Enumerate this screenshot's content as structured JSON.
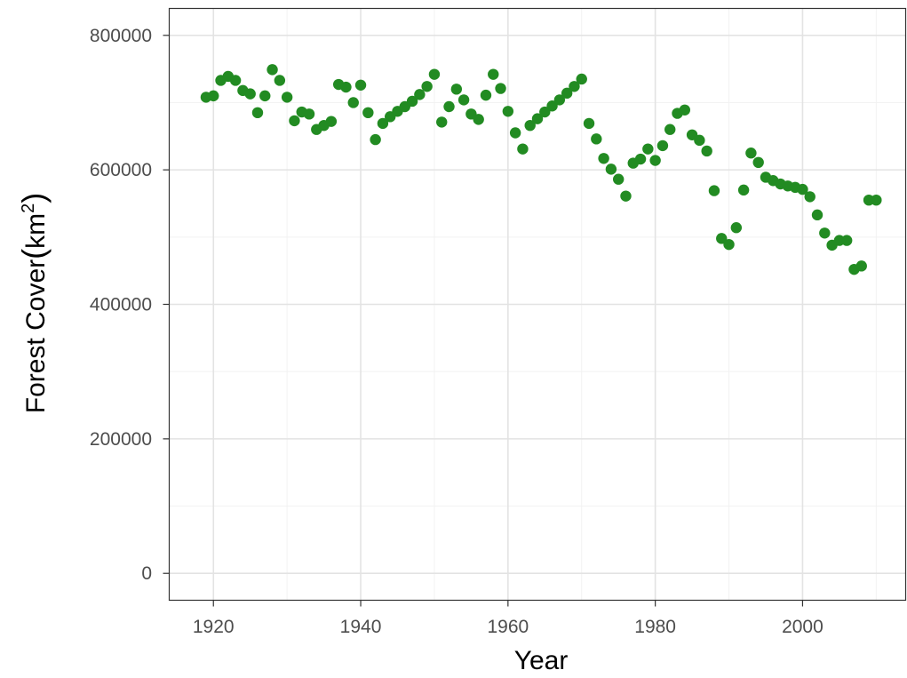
{
  "chart_data": {
    "type": "scatter",
    "xlabel": "Year",
    "ylabel": "Forest Cover",
    "ylabel_unit_base": "km",
    "ylabel_unit_exp": "2",
    "xlim": [
      1914,
      2014
    ],
    "ylim": [
      -40000,
      840000
    ],
    "x_ticks": [
      1920,
      1940,
      1960,
      1980,
      2000
    ],
    "y_ticks": [
      0,
      200000,
      400000,
      600000,
      800000
    ],
    "x_tick_labels": [
      "1920",
      "1940",
      "1960",
      "1980",
      "2000"
    ],
    "y_tick_labels": [
      "0",
      "200000",
      "400000",
      "600000",
      "800000"
    ],
    "grid": true,
    "point_color": "#228B22",
    "series": [
      {
        "x": [
          1919,
          1920,
          1921,
          1922,
          1923,
          1924,
          1925,
          1926,
          1927,
          1928,
          1929,
          1930,
          1931,
          1932,
          1933,
          1934,
          1935,
          1936,
          1937,
          1938,
          1939,
          1940,
          1941,
          1942,
          1943,
          1944,
          1945,
          1946,
          1947,
          1948,
          1949,
          1950,
          1951,
          1952,
          1953,
          1954,
          1955,
          1956,
          1957,
          1958,
          1959,
          1960,
          1961,
          1962,
          1963,
          1964,
          1965,
          1966,
          1967,
          1968,
          1969,
          1970,
          1971,
          1972,
          1973,
          1974,
          1975,
          1976,
          1977,
          1978,
          1979,
          1980,
          1981,
          1982,
          1983,
          1984,
          1985,
          1986,
          1987,
          1988,
          1989,
          1990,
          1991,
          1992,
          1993,
          1994,
          1995,
          1996,
          1997,
          1998,
          1999,
          2000,
          2001,
          2002,
          2003,
          2004,
          2005,
          2006,
          2007,
          2008,
          2009,
          2010
        ],
        "y": [
          708000,
          710000,
          733000,
          739000,
          733000,
          718000,
          713000,
          685000,
          710000,
          749000,
          733000,
          708000,
          673000,
          686000,
          683000,
          660000,
          666000,
          672000,
          727000,
          723000,
          700000,
          726000,
          685000,
          645000,
          669000,
          679000,
          687000,
          694000,
          702000,
          712000,
          724000,
          742000,
          671000,
          694000,
          720000,
          704000,
          683000,
          675000,
          711000,
          742000,
          721000,
          687000,
          655000,
          631000,
          666000,
          676000,
          686000,
          695000,
          704000,
          714000,
          724000,
          735000,
          669000,
          646000,
          617000,
          601000,
          586000,
          561000,
          610000,
          616000,
          631000,
          614000,
          636000,
          660000,
          684000,
          689000,
          652000,
          644000,
          628000,
          569000,
          498000,
          489000,
          514000,
          570000,
          625000,
          611000,
          589000,
          584000,
          579000,
          576000,
          574000,
          571000,
          560000,
          533000,
          506000,
          488000,
          495000,
          495000,
          452000,
          457000,
          555000,
          555000
        ]
      }
    ]
  }
}
